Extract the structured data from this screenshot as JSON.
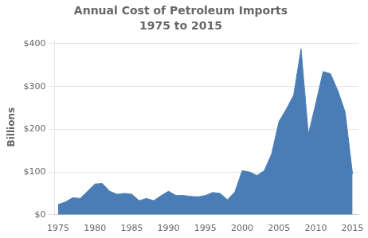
{
  "chart_data": {
    "type": "area",
    "title": "Annual Cost of Petroleum Imports",
    "subtitle": "1975 to 2015",
    "y_label": "Billions",
    "color": "#4a7db5",
    "x": [
      1975,
      1976,
      1977,
      1978,
      1979,
      1980,
      1981,
      1982,
      1983,
      1984,
      1985,
      1986,
      1987,
      1988,
      1989,
      1990,
      1991,
      1992,
      1993,
      1994,
      1995,
      1996,
      1997,
      1998,
      1999,
      2000,
      2001,
      2002,
      2003,
      2004,
      2005,
      2006,
      2007,
      2008,
      2009,
      2010,
      2011,
      2012,
      2013,
      2014,
      2015
    ],
    "values": [
      24,
      30,
      40,
      38,
      55,
      72,
      73,
      55,
      48,
      50,
      48,
      33,
      38,
      33,
      45,
      55,
      45,
      45,
      43,
      42,
      45,
      52,
      50,
      35,
      53,
      103,
      100,
      92,
      103,
      142,
      218,
      247,
      280,
      388,
      188,
      260,
      335,
      330,
      290,
      240,
      95
    ],
    "xlim": [
      1974.5,
      2015.8
    ],
    "xticks": [
      1975,
      1980,
      1985,
      1990,
      1995,
      2000,
      2005,
      2010,
      2015
    ],
    "ylim": [
      0,
      410
    ],
    "yticks": [
      {
        "value": 0,
        "label": "$0"
      },
      {
        "value": 100,
        "label": "$100"
      },
      {
        "value": 200,
        "label": "$200"
      },
      {
        "value": 300,
        "label": "$300"
      },
      {
        "value": 400,
        "label": "$400"
      }
    ],
    "grid": "y"
  }
}
